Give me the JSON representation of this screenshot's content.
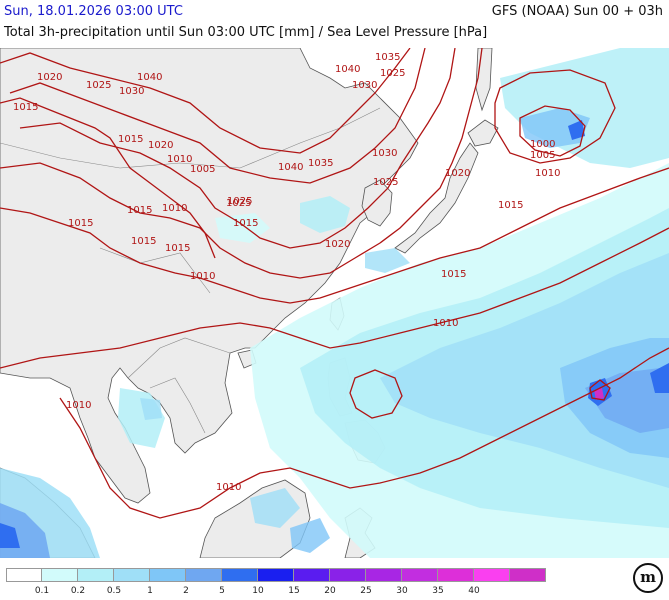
{
  "header": {
    "date": "Sun, 18.01.2026 03:00 UTC",
    "model": "GFS (NOAA) Sun 00 + 03h",
    "description": "Total 3h-precipitation until Sun 03:00 UTC [mm] / Sea Level Pressure [hPa]"
  },
  "isobar_labels": [
    "1040",
    "1030",
    "1025",
    "1020",
    "1015",
    "1010",
    "1005",
    "1000",
    "1035"
  ],
  "legend": {
    "colors": [
      "#ffffff",
      "#d2fbfb",
      "#b3eff7",
      "#9fdff7",
      "#7fc6f7",
      "#6fa7f1",
      "#2f6ef0",
      "#1a1ff0",
      "#5a1cf0",
      "#8a22e8",
      "#a826e4",
      "#c22ee0",
      "#dd2fd9",
      "#fa3ff0",
      "#cf2fc8"
    ],
    "ticks": [
      "0.1",
      "0.2",
      "0.5",
      "1",
      "2",
      "5",
      "10",
      "15",
      "20",
      "25",
      "30",
      "35",
      "40"
    ]
  },
  "logo": {
    "text": "m",
    "icon": "meteologix-logo-icon"
  }
}
